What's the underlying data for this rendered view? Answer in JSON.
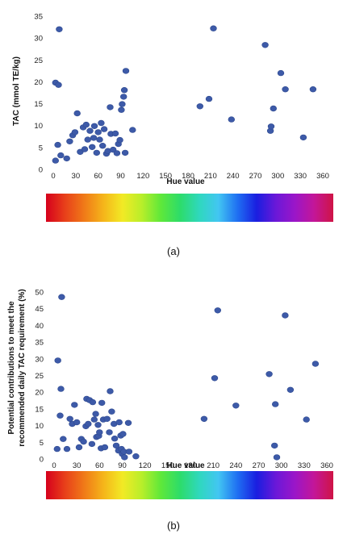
{
  "hue_bar_colors": [
    "#d6001c",
    "#e8401a",
    "#f07a18",
    "#f5b51a",
    "#f2ea25",
    "#b8ee2a",
    "#5ee83a",
    "#2ddc6a",
    "#2fd8bd",
    "#42c6f2",
    "#1f6ff2",
    "#1a1ee0",
    "#6a18d8",
    "#9b16c8",
    "#c31698",
    "#cf1445"
  ],
  "chart_data": [
    {
      "panel_label": "(a)",
      "type": "scatter",
      "xlabel": "Hue value",
      "ylabel": "TAC (mmol TE/kg)",
      "xlim": [
        0,
        360
      ],
      "ylim": [
        0,
        35
      ],
      "x_ticks": [
        0,
        30,
        60,
        90,
        120,
        150,
        180,
        210,
        240,
        270,
        300,
        330,
        360
      ],
      "y_ticks": [
        0,
        5,
        10,
        15,
        20,
        25,
        30,
        35
      ],
      "grid": false,
      "legend": "none",
      "point_color": "#3d5aa8",
      "series": [
        {
          "points": [
            [
              3,
              2
            ],
            [
              3,
              19.8
            ],
            [
              6,
              5.6
            ],
            [
              7,
              19.3
            ],
            [
              8,
              32
            ],
            [
              10,
              3.2
            ],
            [
              18,
              2.5
            ],
            [
              22,
              6.4
            ],
            [
              26,
              7.8
            ],
            [
              29,
              8.5
            ],
            [
              32,
              12.8
            ],
            [
              36,
              4
            ],
            [
              40,
              9.6
            ],
            [
              42,
              4.6
            ],
            [
              44,
              10.2
            ],
            [
              46,
              6.8
            ],
            [
              49,
              8.8
            ],
            [
              52,
              5.1
            ],
            [
              54,
              7.2
            ],
            [
              55,
              9.9
            ],
            [
              58,
              3.8
            ],
            [
              60,
              8.5
            ],
            [
              62,
              6.8
            ],
            [
              64,
              10.6
            ],
            [
              66,
              5.4
            ],
            [
              68,
              9.2
            ],
            [
              71,
              3.6
            ],
            [
              73,
              4.2
            ],
            [
              76,
              14.2
            ],
            [
              77,
              8.1
            ],
            [
              80,
              4.5
            ],
            [
              83,
              8.2
            ],
            [
              85,
              3.7
            ],
            [
              87,
              5.8
            ],
            [
              89,
              6.7
            ],
            [
              91,
              13.6
            ],
            [
              92,
              14.9
            ],
            [
              94,
              16.6
            ],
            [
              95,
              18.1
            ],
            [
              96,
              3.8
            ],
            [
              97,
              22.5
            ],
            [
              106,
              9
            ],
            [
              196,
              14.4
            ],
            [
              208,
              16.1
            ],
            [
              214,
              32.2
            ],
            [
              238,
              11.4
            ],
            [
              283,
              28.4
            ],
            [
              290,
              8.8
            ],
            [
              291,
              9.8
            ],
            [
              294,
              13.9
            ],
            [
              304,
              22
            ],
            [
              310,
              18.3
            ],
            [
              334,
              7.3
            ],
            [
              347,
              18.3
            ]
          ]
        }
      ]
    },
    {
      "panel_label": "(b)",
      "type": "scatter",
      "xlabel": "Hue value",
      "ylabel": "Potential contributions to meet the recommended daily TAC requirement (%)",
      "ylabel_lines": [
        "Potential contributions to meet the",
        "recommended daily TAC requirement (%)"
      ],
      "xlim": [
        0,
        360
      ],
      "ylim": [
        0,
        50
      ],
      "x_ticks": [
        0,
        30,
        60,
        90,
        120,
        150,
        180,
        210,
        240,
        270,
        300,
        330,
        360
      ],
      "y_ticks": [
        0,
        5,
        10,
        15,
        20,
        25,
        30,
        35,
        40,
        45,
        50
      ],
      "grid": false,
      "legend": "none",
      "point_color": "#3d5aa8",
      "series": [
        {
          "points": [
            [
              4,
              3
            ],
            [
              5,
              29.5
            ],
            [
              8,
              13
            ],
            [
              9,
              21
            ],
            [
              10,
              48.5
            ],
            [
              12,
              6
            ],
            [
              17,
              3
            ],
            [
              21,
              12
            ],
            [
              24,
              10.5
            ],
            [
              27,
              16.2
            ],
            [
              30,
              11
            ],
            [
              33,
              3.5
            ],
            [
              36,
              6
            ],
            [
              39,
              5.2
            ],
            [
              42,
              9.8
            ],
            [
              43,
              18
            ],
            [
              45,
              10.5
            ],
            [
              47,
              17.6
            ],
            [
              50,
              4.5
            ],
            [
              51,
              17
            ],
            [
              53,
              11.8
            ],
            [
              55,
              13.5
            ],
            [
              56,
              6.6
            ],
            [
              58,
              10.2
            ],
            [
              59,
              6.9
            ],
            [
              60,
              8
            ],
            [
              62,
              3.2
            ],
            [
              63,
              16.8
            ],
            [
              65,
              11.8
            ],
            [
              67,
              3.5
            ],
            [
              70,
              12
            ],
            [
              73,
              8
            ],
            [
              74,
              20.3
            ],
            [
              76,
              14.2
            ],
            [
              79,
              10.5
            ],
            [
              80,
              6.1
            ],
            [
              82,
              4
            ],
            [
              85,
              2.5
            ],
            [
              86,
              11
            ],
            [
              88,
              7
            ],
            [
              89,
              3
            ],
            [
              90,
              1.5
            ],
            [
              91,
              7.5
            ],
            [
              92,
              2.2
            ],
            [
              93,
              0.5
            ],
            [
              98,
              10.8
            ],
            [
              99,
              2.2
            ],
            [
              108,
              0.8
            ],
            [
              198,
              12
            ],
            [
              212,
              24.2
            ],
            [
              216,
              44.5
            ],
            [
              240,
              16
            ],
            [
              284,
              25.4
            ],
            [
              291,
              4
            ],
            [
              292,
              16.4
            ],
            [
              294,
              0.5
            ],
            [
              305,
              43
            ],
            [
              312,
              20.7
            ],
            [
              333,
              11.8
            ],
            [
              345,
              28.5
            ]
          ]
        }
      ]
    }
  ]
}
